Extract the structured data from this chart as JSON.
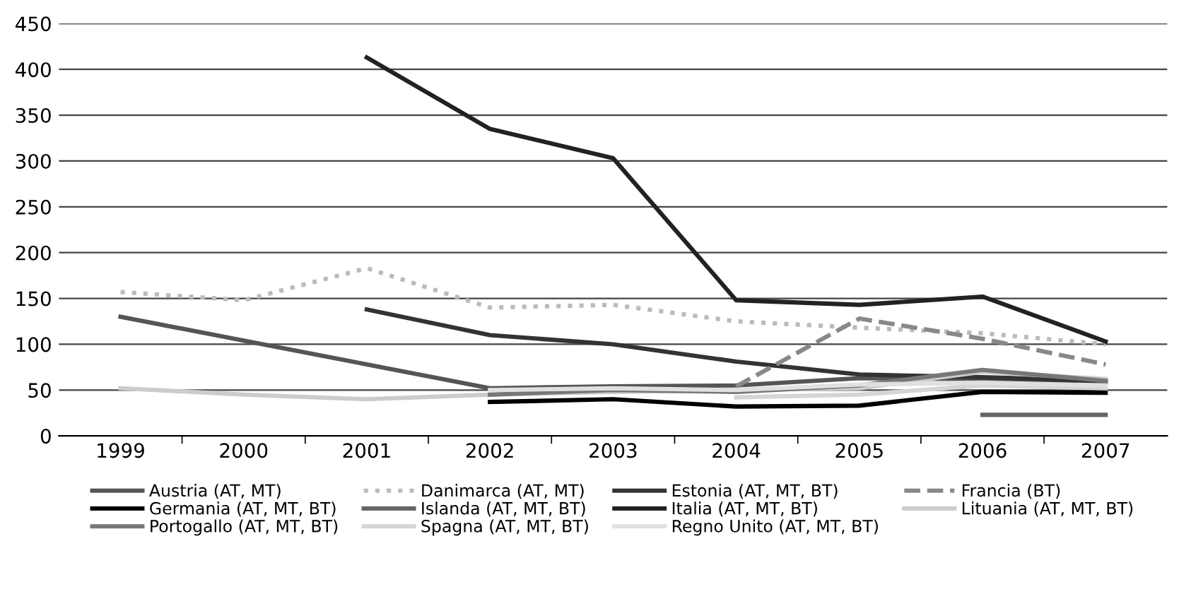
{
  "chart_data": {
    "type": "line",
    "categories": [
      "1999",
      "2000",
      "2001",
      "2002",
      "2003",
      "2004",
      "2005",
      "2006",
      "2007"
    ],
    "series": [
      {
        "name": "Austria (AT, MT)",
        "color": "#555555",
        "values": [
          130,
          104,
          78,
          52,
          54,
          55,
          63,
          62,
          58
        ]
      },
      {
        "name": "Danimarca (AT, MT)",
        "color": "#bbbbbb",
        "line_style": "dotted",
        "values": [
          157,
          148,
          183,
          140,
          143,
          125,
          118,
          112,
          100
        ]
      },
      {
        "name": "Estonia (AT, MT, BT)",
        "color": "#333333",
        "values": [
          null,
          null,
          138,
          110,
          100,
          81,
          67,
          64,
          60
        ]
      },
      {
        "name": "Francia (BT)",
        "color": "#888888",
        "line_style": "dashed",
        "values": [
          null,
          null,
          null,
          null,
          null,
          54,
          128,
          106,
          78
        ]
      },
      {
        "name": "Germania (AT, MT, BT)",
        "color": "#000000",
        "values": [
          null,
          null,
          null,
          37,
          40,
          32,
          33,
          48,
          47
        ]
      },
      {
        "name": "Islanda (AT, MT, BT)",
        "color": "#666666",
        "values": [
          null,
          null,
          null,
          null,
          null,
          null,
          null,
          23,
          23
        ]
      },
      {
        "name": "Italia (AT, MT, BT)",
        "color": "#222222",
        "values": [
          null,
          null,
          413,
          335,
          303,
          148,
          143,
          152,
          103
        ]
      },
      {
        "name": "Lituania (AT, MT, BT)",
        "color": "#cccccc",
        "values": [
          52,
          45,
          40,
          45,
          48,
          50,
          52,
          70,
          62
        ]
      },
      {
        "name": "Portogallo (AT, MT, BT)",
        "color": "#777777",
        "values": [
          null,
          null,
          null,
          45,
          50,
          48,
          55,
          72,
          60
        ]
      },
      {
        "name": "Spagna (AT, MT, BT)",
        "color": "#d5d5d5",
        "values": [
          null,
          null,
          null,
          null,
          null,
          42,
          45,
          55,
          52
        ]
      },
      {
        "name": "Regno Unito (AT, MT, BT)",
        "color": "#e0e0e0",
        "values": [
          null,
          null,
          null,
          50,
          52,
          50,
          56,
          58,
          55
        ]
      }
    ],
    "ylim": [
      0,
      450
    ],
    "yticks": [
      0,
      50,
      100,
      150,
      200,
      250,
      300,
      350,
      400,
      450
    ],
    "grid": "y",
    "legend": "bottom",
    "marker": "none"
  }
}
